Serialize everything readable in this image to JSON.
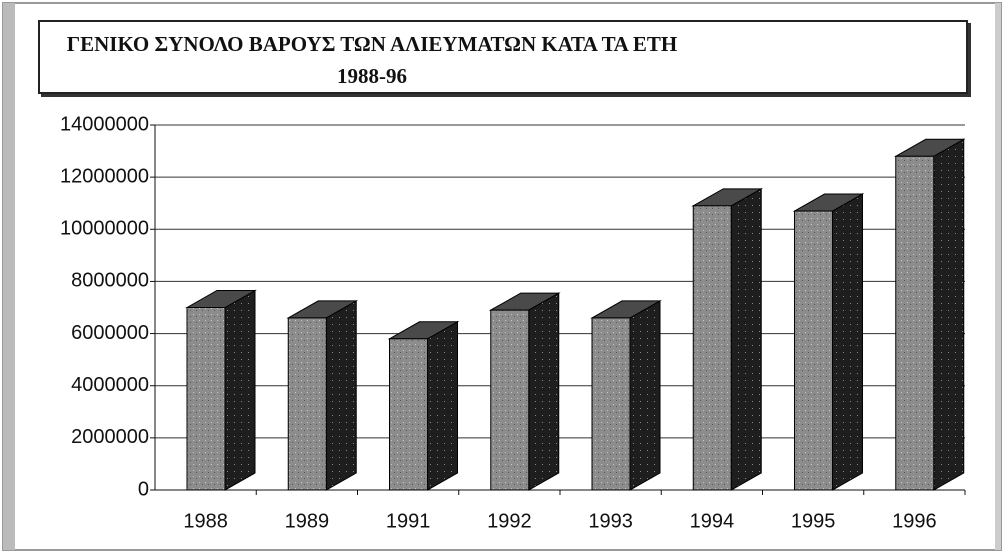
{
  "chart_data": {
    "type": "bar3d",
    "title": "ΓΕΝΙΚΟ ΣΥΝΟΛΟ ΒΑΡΟΥΣ ΤΩΝ ΑΛΙΕΥΜΑΤΩΝ ΚΑΤΑ ΤΑ ΕΤΗ 1988-96",
    "categories": [
      "1988",
      "1989",
      "1991",
      "1992",
      "1993",
      "1994",
      "1995",
      "1996"
    ],
    "values": [
      7000000,
      6600000,
      5800000,
      6900000,
      6600000,
      10900000,
      10700000,
      12800000
    ],
    "color": "#8c8c8c",
    "ylim": [
      0,
      14000000
    ],
    "yticks": [
      0,
      2000000,
      4000000,
      6000000,
      8000000,
      10000000,
      12000000,
      14000000
    ],
    "grid": true
  }
}
